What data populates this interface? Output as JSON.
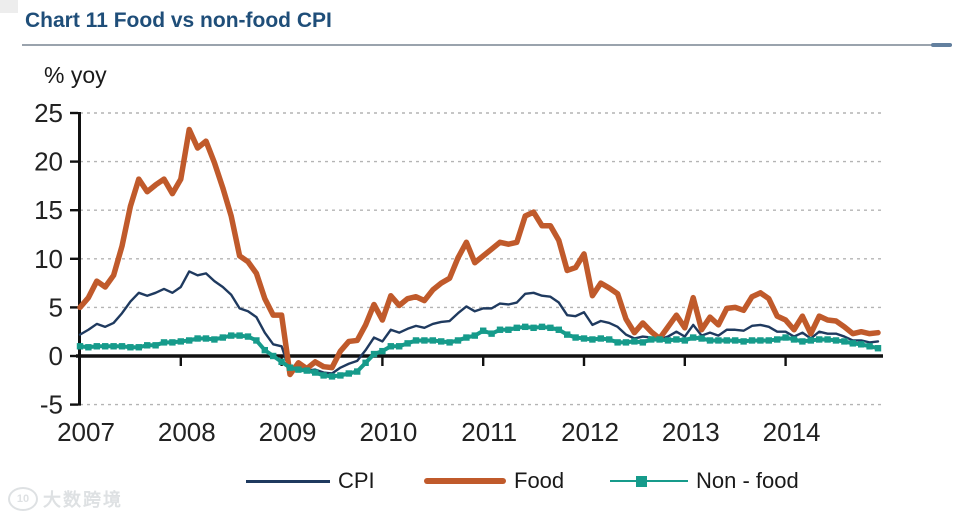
{
  "header": {
    "title": "Chart 11 Food vs non-food CPI",
    "title_color": "#1F4E79"
  },
  "chart_data": {
    "type": "line",
    "title": "Chart 11 Food vs non-food CPI",
    "unit_label": "% yoy",
    "x_frequency": "monthly",
    "x_start": "2007-01",
    "x_end": "2014-12",
    "x_year_labels": [
      "2007",
      "2008",
      "2009",
      "2010",
      "2011",
      "2012",
      "2013",
      "2014"
    ],
    "yticks": [
      25,
      20,
      15,
      10,
      5,
      0,
      -5
    ],
    "ylim": [
      -5,
      25
    ],
    "grid": "horizontal-dashed",
    "legend_position": "bottom",
    "axis_color": "#111111",
    "gridline_color": "#b4b4b4",
    "series": [
      {
        "name": "CPI",
        "color": "#1F3A5F",
        "line_width": 2.4,
        "marker": "none",
        "values": [
          2.2,
          2.7,
          3.3,
          3.0,
          3.4,
          4.4,
          5.6,
          6.5,
          6.2,
          6.5,
          6.9,
          6.5,
          7.1,
          8.7,
          8.3,
          8.5,
          7.7,
          7.1,
          6.3,
          4.9,
          4.6,
          4.0,
          2.4,
          1.2,
          1.0,
          -1.6,
          -1.2,
          -1.5,
          -1.4,
          -1.7,
          -1.8,
          -1.2,
          -0.8,
          -0.5,
          0.6,
          1.9,
          1.5,
          2.7,
          2.4,
          2.8,
          3.1,
          2.9,
          3.3,
          3.5,
          3.6,
          4.4,
          5.1,
          4.6,
          4.9,
          4.9,
          5.4,
          5.3,
          5.5,
          6.4,
          6.5,
          6.2,
          6.1,
          5.5,
          4.2,
          4.1,
          4.5,
          3.2,
          3.6,
          3.4,
          3.0,
          2.2,
          1.8,
          2.0,
          1.9,
          1.7,
          2.0,
          2.5,
          2.0,
          3.2,
          2.1,
          2.4,
          2.1,
          2.7,
          2.7,
          2.6,
          3.1,
          3.2,
          3.0,
          2.5,
          2.5,
          2.0,
          2.4,
          1.8,
          2.5,
          2.3,
          2.3,
          2.0,
          1.6,
          1.6,
          1.4,
          1.5
        ]
      },
      {
        "name": "Food",
        "color": "#C05A2B",
        "line_width": 5.5,
        "marker": "none",
        "values": [
          5.0,
          6.0,
          7.7,
          7.1,
          8.3,
          11.3,
          15.4,
          18.2,
          16.9,
          17.6,
          18.2,
          16.7,
          18.2,
          23.3,
          21.4,
          22.1,
          19.9,
          17.3,
          14.4,
          10.3,
          9.7,
          8.5,
          5.9,
          4.2,
          4.2,
          -1.9,
          -0.7,
          -1.3,
          -0.6,
          -1.1,
          -1.2,
          0.5,
          1.5,
          1.6,
          3.2,
          5.3,
          3.7,
          6.2,
          5.2,
          5.9,
          6.1,
          5.7,
          6.8,
          7.5,
          8.0,
          10.1,
          11.7,
          9.6,
          10.3,
          11.0,
          11.7,
          11.5,
          11.7,
          14.4,
          14.8,
          13.4,
          13.4,
          11.9,
          8.8,
          9.1,
          10.5,
          6.2,
          7.5,
          7.0,
          6.4,
          3.8,
          2.4,
          3.4,
          2.5,
          1.8,
          3.0,
          4.2,
          2.9,
          6.0,
          2.7,
          4.0,
          3.2,
          4.9,
          5.0,
          4.7,
          6.1,
          6.5,
          5.9,
          4.1,
          3.7,
          2.7,
          4.1,
          2.3,
          4.1,
          3.7,
          3.6,
          3.0,
          2.3,
          2.5,
          2.3,
          2.4
        ]
      },
      {
        "name": "Non - food",
        "color": "#169B8B",
        "line_width": 4,
        "marker": "square",
        "values": [
          1.0,
          0.9,
          1.0,
          1.0,
          1.0,
          1.0,
          0.9,
          0.9,
          1.1,
          1.1,
          1.4,
          1.4,
          1.5,
          1.6,
          1.8,
          1.8,
          1.7,
          1.9,
          2.1,
          2.1,
          2.0,
          1.6,
          0.6,
          0.0,
          -0.6,
          -1.2,
          -1.4,
          -1.5,
          -1.7,
          -2.0,
          -2.1,
          -2.0,
          -1.8,
          -1.6,
          -0.7,
          0.2,
          0.5,
          1.0,
          1.0,
          1.3,
          1.6,
          1.6,
          1.6,
          1.5,
          1.4,
          1.6,
          1.9,
          2.1,
          2.6,
          2.3,
          2.7,
          2.7,
          2.9,
          3.0,
          2.9,
          3.0,
          2.9,
          2.7,
          2.2,
          1.9,
          1.8,
          1.7,
          1.8,
          1.7,
          1.4,
          1.4,
          1.5,
          1.4,
          1.7,
          1.7,
          1.6,
          1.7,
          1.6,
          1.9,
          1.8,
          1.6,
          1.6,
          1.6,
          1.6,
          1.5,
          1.6,
          1.6,
          1.6,
          1.7,
          1.9,
          1.7,
          1.5,
          1.6,
          1.7,
          1.7,
          1.6,
          1.5,
          1.3,
          1.2,
          1.0,
          0.8
        ]
      }
    ]
  },
  "watermark": {
    "logo_text": "10",
    "text": "大数跨境"
  }
}
